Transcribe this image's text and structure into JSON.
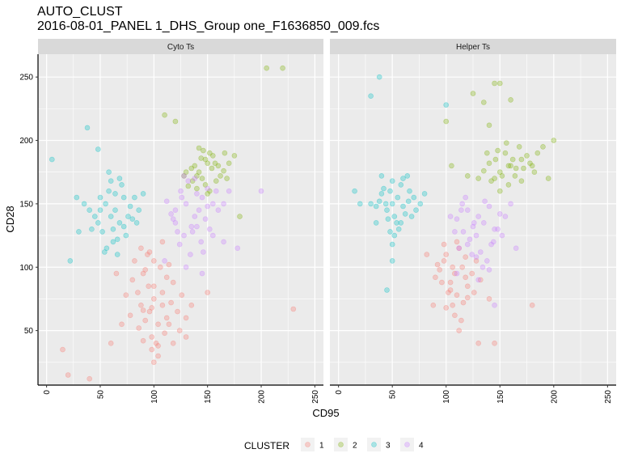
{
  "title": "AUTO_CLUST",
  "subtitle": "2016-08-01_PANEL 1_DHS_Group one_F1636850_009.fcs",
  "colors": {
    "panel_bg": "#ebebeb",
    "strip_bg": "#d9d9d9",
    "grid": "#ffffff",
    "cluster_1": "#F8766D",
    "cluster_2": "#7CAE00",
    "cluster_3": "#00BFC4",
    "cluster_4": "#C77CFF"
  },
  "chart_data": {
    "type": "scatter",
    "xlabel": "CD95",
    "ylabel": "CD28",
    "xlim": [
      -8,
      258
    ],
    "ylim": [
      7,
      268
    ],
    "x_ticks": [
      0,
      50,
      100,
      150,
      200,
      250
    ],
    "y_ticks": [
      50,
      100,
      150,
      200,
      250
    ],
    "grid": true,
    "point_alpha": 0.3,
    "legend": {
      "title": "CLUSTER",
      "position": "bottom",
      "entries": [
        "1",
        "2",
        "3",
        "4"
      ]
    },
    "panels": [
      {
        "name": "Cyto Ts",
        "series": [
          {
            "name": "1",
            "x": [
              100,
              96,
              108,
              88,
              112,
              95,
              104,
              90,
              116,
              98,
              85,
              122,
              92,
              106,
              100,
              110,
              80,
              118,
              102,
              94,
              126,
              86,
              98,
              108,
              112,
              104,
              90,
              78,
              96,
              114,
              100,
              74,
              130,
              104,
              92,
              114,
              88,
              98,
              124,
              82,
              70,
              118,
              100,
              65,
              135,
              108,
              90,
              230,
              15,
              20,
              40,
              150,
              60,
              130
            ],
            "y": [
              75,
              65,
              80,
              70,
              60,
              85,
              55,
              95,
              72,
              45,
              80,
              65,
              58,
              100,
              105,
              48,
              90,
              88,
              40,
              110,
              78,
              52,
              35,
              70,
              92,
              30,
              42,
              62,
              112,
              55,
              25,
              78,
              60,
              38,
              98,
              102,
              115,
              68,
              50,
              105,
              55,
              40,
              85,
              95,
              70,
              120,
              66,
              67,
              35,
              15,
              12,
              80,
              40,
              45
            ]
          },
          {
            "name": "2",
            "x": [
              138,
              142,
              148,
              135,
              150,
              145,
              155,
              140,
              160,
              152,
              165,
              130,
              158,
              148,
              170,
              144,
              162,
              136,
              154,
              146,
              175,
              128,
              140,
              166,
              150,
              142,
              157,
              132,
              168,
              152,
              205,
              220,
              110,
              180,
              120
            ],
            "y": [
              180,
              175,
              185,
              178,
              182,
              170,
              188,
              172,
              180,
              190,
              176,
              175,
              168,
              165,
              182,
              186,
              172,
              168,
              178,
              192,
              188,
              172,
              162,
              190,
              158,
              194,
              182,
              164,
              170,
              160,
              257,
              257,
              220,
              140,
              215
            ]
          },
          {
            "name": "3",
            "x": [
              60,
              55,
              68,
              50,
              72,
              62,
              45,
              58,
              78,
              66,
              52,
              80,
              40,
              70,
              56,
              64,
              82,
              48,
              74,
              60,
              35,
              86,
              68,
              54,
              76,
              42,
              62,
              90,
              58,
              50,
              72,
              64,
              30,
              84,
              66,
              5,
              38,
              48,
              28,
              22
            ],
            "y": [
              140,
              150,
              135,
              145,
              155,
              130,
              140,
              160,
              148,
              122,
              128,
              138,
              145,
              165,
              115,
              158,
              155,
              135,
              125,
              168,
              150,
              145,
              170,
              112,
              140,
              130,
              120,
              158,
              175,
              155,
              132,
              145,
              128,
              135,
              110,
              185,
              210,
              193,
              155,
              105
            ]
          },
          {
            "name": "4",
            "x": [
              130,
              138,
              125,
              145,
              120,
              135,
              150,
              128,
              142,
              118,
              155,
              132,
              148,
              124,
              140,
              160,
              112,
              136,
              152,
              128,
              144,
              158,
              116,
              134,
              150,
              126,
              140,
              165,
              122,
              146,
              170,
              130,
              138,
              155,
              120,
              200,
              165,
              178,
              110,
              145
            ],
            "y": [
              150,
              140,
              160,
              155,
              145,
              132,
              162,
              125,
              145,
              138,
              150,
              168,
              138,
              118,
              158,
              145,
              152,
              128,
              130,
              172,
              120,
              160,
              142,
              110,
              148,
              155,
              132,
              150,
              128,
              112,
              160,
              100,
              170,
              125,
              135,
              160,
              120,
              115,
              105,
              95
            ]
          }
        ]
      },
      {
        "name": "Helper Ts",
        "series": [
          {
            "name": "1",
            "x": [
              108,
              104,
              115,
              98,
              120,
              110,
              100,
              118,
              106,
              94,
              124,
              112,
              102,
              116,
              96,
              128,
              108,
              92,
              120,
              110,
              100,
              132,
              114,
              104,
              90,
              118,
              112,
              126,
              98,
              106,
              140,
              82,
              88,
              180,
              130,
              145
            ],
            "y": [
              95,
              88,
              100,
              105,
              85,
              78,
              110,
              92,
              70,
              98,
              95,
              115,
              80,
              72,
              88,
              105,
              62,
              102,
              76,
              120,
              68,
              90,
              58,
              82,
              92,
              108,
              50,
              80,
              118,
              100,
              75,
              110,
              70,
              70,
              40,
              40
            ]
          },
          {
            "name": "2",
            "x": [
              150,
              160,
              145,
              170,
              155,
              165,
              140,
              175,
              158,
              148,
              180,
              152,
              168,
              135,
              162,
              185,
              142,
              172,
              156,
              130,
              178,
              150,
              164,
              146,
              190,
              138,
              170,
              158,
              182,
              120,
              145,
              150,
              125,
              135,
              100,
              105,
              140,
              200,
              195,
              160
            ],
            "y": [
              175,
              180,
              170,
              185,
              190,
              178,
              182,
              188,
              165,
              192,
              180,
              172,
              195,
              176,
              185,
              190,
              168,
              178,
              198,
              170,
              182,
              160,
              172,
              185,
              195,
              190,
              168,
              180,
              175,
              172,
              245,
              245,
              237,
              230,
              215,
              180,
              212,
              200,
              170,
              232
            ]
          },
          {
            "name": "3",
            "x": [
              50,
              55,
              45,
              60,
              48,
              65,
              52,
              40,
              58,
              62,
              44,
              70,
              54,
              38,
              66,
              50,
              72,
              46,
              56,
              35,
              60,
              68,
              42,
              76,
              52,
              30,
              64,
              48,
              80,
              58,
              40,
              50,
              35,
              15,
              20,
              45,
              50,
              38,
              100,
              30
            ],
            "y": [
              150,
              155,
              145,
              148,
              160,
              152,
              140,
              158,
              165,
              142,
              150,
              155,
              135,
              152,
              160,
              168,
              145,
              138,
              130,
              148,
              170,
              140,
              162,
              150,
              125,
              150,
              172,
              128,
              158,
              135,
              172,
              118,
              135,
              160,
              150,
              82,
              105,
              250,
              228,
              235
            ]
          },
          {
            "name": "4",
            "x": [
              120,
              130,
              115,
              135,
              125,
              140,
              110,
              145,
              128,
              118,
              150,
              122,
              136,
              108,
              142,
              126,
              155,
              114,
              132,
              148,
              120,
              138,
              104,
              160,
              128,
              144,
              116,
              134,
              152,
              112,
              140,
              124,
              130,
              165,
              110,
              145
            ],
            "y": [
              145,
              140,
              150,
              135,
              132,
              148,
              138,
              130,
              125,
              155,
              142,
              122,
              152,
              128,
              118,
              135,
              140,
              145,
              112,
              130,
              118,
              105,
              140,
              150,
              108,
              120,
              128,
              100,
              125,
              115,
              98,
              110,
              90,
              115,
              95,
              70
            ]
          }
        ]
      }
    ]
  }
}
